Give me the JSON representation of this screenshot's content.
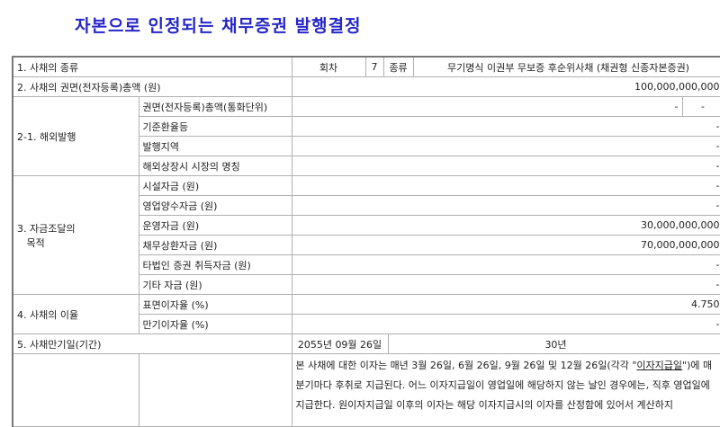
{
  "title": "자본으로 인정되는 채무증권 발행결정",
  "row1": {
    "label": "1. 사채의 종류",
    "round_label": "회차",
    "round": "7",
    "kind_label": "종류",
    "kind": "무기명식 이권부 무보증 후순위사채 (채권형 신종자본증권)"
  },
  "row2": {
    "label": "2. 사채의 권면(전자등록)총액 (원)",
    "value": "100,000,000,000"
  },
  "row21": {
    "label": "2-1. 해외발행",
    "items": [
      {
        "label": "권면(전자등록)총액(통화단위)",
        "value": "-",
        "unit": "-"
      },
      {
        "label": "기준환율등",
        "value": "-"
      },
      {
        "label": "발행지역",
        "value": "-"
      },
      {
        "label": "해외상장시 시장의 명칭",
        "value": "-"
      }
    ]
  },
  "row3": {
    "label1": "3. 자금조달의",
    "label2": "목적",
    "items": [
      {
        "label": "시설자금 (원)",
        "value": "-"
      },
      {
        "label": "영업양수자금 (원)",
        "value": "-"
      },
      {
        "label": "운영자금 (원)",
        "value": "30,000,000,000"
      },
      {
        "label": "채무상환자금 (원)",
        "value": "70,000,000,000"
      },
      {
        "label": "타법인 증권 취득자금 (원)",
        "value": "-"
      },
      {
        "label": "기타 자금 (원)",
        "value": "-"
      }
    ]
  },
  "row4": {
    "label": "4. 사채의 이율",
    "items": [
      {
        "label": "표면이자율 (%)",
        "value": "4.750"
      },
      {
        "label": "만기이자율 (%)",
        "value": "-"
      }
    ]
  },
  "row5": {
    "label": "5. 사채만기일(기간)",
    "date": "2055년 09월 26일",
    "period": "30년"
  },
  "row6": {
    "text_a": "본 사채에 대한 이자는 매년 3월 26일, 6월 26일, 9월 26일 및 12월 26일(각각 \"",
    "text_term": "이자지급일",
    "text_b": "\")에 매 분기마다 후취로 지급된다. 어느 이자지급일이 영업일에 해당하지 않는 날인 경우에는, 직후 영업일에 지급한다. 원이자지급일 이후의 이자는 해당 이자지급시의 이자를 산정함에 있어서 계산하지"
  }
}
